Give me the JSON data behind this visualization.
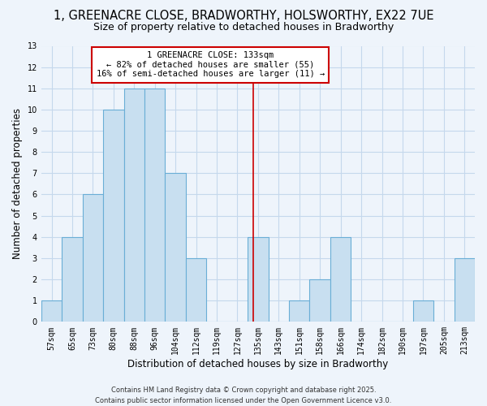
{
  "title": "1, GREENACRE CLOSE, BRADWORTHY, HOLSWORTHY, EX22 7UE",
  "subtitle": "Size of property relative to detached houses in Bradworthy",
  "xlabel": "Distribution of detached houses by size in Bradworthy",
  "ylabel": "Number of detached properties",
  "bin_labels": [
    "57sqm",
    "65sqm",
    "73sqm",
    "80sqm",
    "88sqm",
    "96sqm",
    "104sqm",
    "112sqm",
    "119sqm",
    "127sqm",
    "135sqm",
    "143sqm",
    "151sqm",
    "158sqm",
    "166sqm",
    "174sqm",
    "182sqm",
    "190sqm",
    "197sqm",
    "205sqm",
    "213sqm"
  ],
  "bar_heights": [
    1,
    4,
    6,
    10,
    11,
    11,
    7,
    3,
    0,
    0,
    4,
    0,
    1,
    2,
    4,
    0,
    0,
    0,
    1,
    0,
    3
  ],
  "bar_color": "#c8dff0",
  "bar_edge_color": "#6aaed6",
  "ylim": [
    0,
    13
  ],
  "yticks": [
    0,
    1,
    2,
    3,
    4,
    5,
    6,
    7,
    8,
    9,
    10,
    11,
    12,
    13
  ],
  "property_line_color": "#cc0000",
  "annotation_title": "1 GREENACRE CLOSE: 133sqm",
  "annotation_line1": "← 82% of detached houses are smaller (55)",
  "annotation_line2": "16% of semi-detached houses are larger (11) →",
  "footer_line1": "Contains HM Land Registry data © Crown copyright and database right 2025.",
  "footer_line2": "Contains public sector information licensed under the Open Government Licence v3.0.",
  "bg_color": "#eef4fb",
  "grid_color": "#c5d8ec",
  "title_fontsize": 10.5,
  "subtitle_fontsize": 9,
  "axis_label_fontsize": 8.5,
  "tick_fontsize": 7,
  "footer_fontsize": 6
}
